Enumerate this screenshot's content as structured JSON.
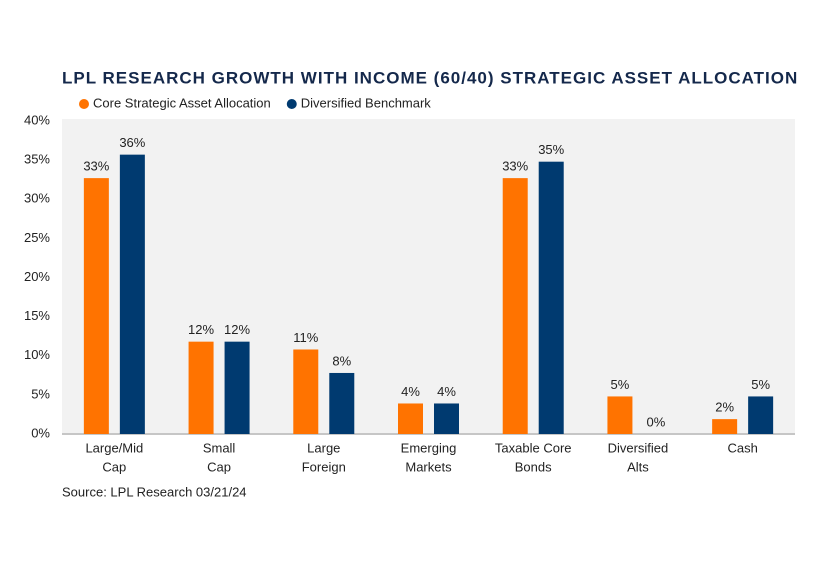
{
  "chart_data": {
    "type": "bar",
    "title": "LPL RESEARCH GROWTH WITH INCOME (60/40) STRATEGIC ASSET ALLOCATION",
    "source": "Source: LPL Research 03/21/24",
    "categories": [
      [
        "Large/Mid",
        "Cap"
      ],
      [
        "Small",
        "Cap"
      ],
      [
        "Large",
        "Foreign"
      ],
      [
        "Emerging",
        "Markets"
      ],
      [
        "Taxable Core",
        "Bonds"
      ],
      [
        "Diversified",
        "Alts"
      ],
      [
        "Cash"
      ]
    ],
    "series": [
      {
        "name": "Core Strategic Asset Allocation",
        "color": "#ff7300",
        "values": [
          32.7,
          11.8,
          10.8,
          3.9,
          32.7,
          4.8,
          1.9
        ],
        "value_labels": [
          "33%",
          "12%",
          "11%",
          "4%",
          "33%",
          "5%",
          "2%"
        ]
      },
      {
        "name": "Diversified Benchmark",
        "color": "#003a70",
        "values": [
          35.7,
          11.8,
          7.8,
          3.9,
          34.8,
          0,
          4.8
        ],
        "value_labels": [
          "36%",
          "12%",
          "8%",
          "4%",
          "35%",
          "0%",
          "5%"
        ]
      }
    ],
    "ylim": [
      0,
      40
    ],
    "yticks": [
      {
        "value": 0,
        "label": "0%"
      },
      {
        "value": 5,
        "label": "5%"
      },
      {
        "value": 10,
        "label": "10%"
      },
      {
        "value": 15,
        "label": "15%"
      },
      {
        "value": 20,
        "label": "20%"
      },
      {
        "value": 25,
        "label": "25%"
      },
      {
        "value": 30,
        "label": "30%"
      },
      {
        "value": 35,
        "label": "35%"
      },
      {
        "value": 40,
        "label": "40%"
      }
    ],
    "grid": false
  }
}
